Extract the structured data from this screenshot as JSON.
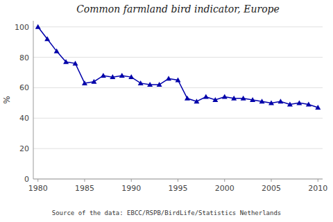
{
  "chart_data": {
    "type": "line",
    "title": "Common farmland bird indicator, Europe",
    "ylabel": "%",
    "annotations": [
      "Source of the data: EBCC/RSPB/BirdLife/Statistics Netherlands"
    ],
    "x": [
      1980,
      1981,
      1982,
      1983,
      1984,
      1985,
      1986,
      1987,
      1988,
      1989,
      1990,
      1991,
      1992,
      1993,
      1994,
      1995,
      1996,
      1997,
      1998,
      1999,
      2000,
      2001,
      2002,
      2003,
      2004,
      2005,
      2006,
      2007,
      2008,
      2009,
      2010
    ],
    "values": [
      100,
      92,
      84,
      77,
      76,
      63,
      64,
      68,
      67,
      68,
      67,
      63,
      62,
      62,
      66,
      65,
      53,
      51,
      54,
      52,
      54,
      53,
      53,
      52,
      51,
      50,
      51,
      49,
      50,
      49,
      47
    ],
    "xlim": [
      1979.5,
      2010.5
    ],
    "ylim": [
      0,
      104
    ],
    "xticks": [
      1980,
      1985,
      1990,
      1995,
      2000,
      2005,
      2010
    ],
    "yticks": [
      0,
      20,
      40,
      60,
      80,
      100
    ],
    "color": "#0000AA",
    "marker": "triangle",
    "grid": true
  }
}
